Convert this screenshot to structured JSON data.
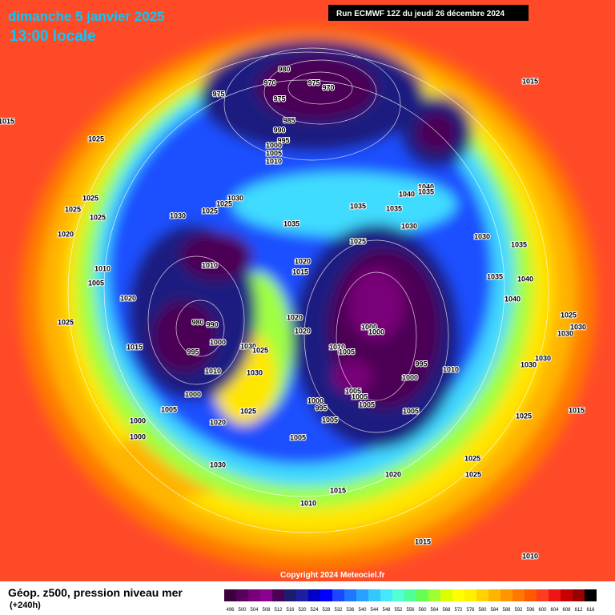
{
  "header": {
    "date": "dimanche 5 janvier 2025",
    "time": "13:00 locale",
    "run": "Run ECMWF 12Z du jeudi 26 décembre 2024"
  },
  "copyright": "Copyright 2024 Meteociel.fr",
  "footer": {
    "title": "Géop. z500, pression niveau mer",
    "lead": "(+240h)"
  },
  "isobar_labels": [
    980,
    970,
    975,
    970,
    975,
    975,
    985,
    990,
    995,
    1000,
    1005,
    1010,
    1015,
    1015,
    1025,
    1025,
    1025,
    1025,
    1020,
    1010,
    1005,
    1020,
    1025,
    1015,
    1010,
    980,
    990,
    995,
    1000,
    1010,
    1000,
    1005,
    1000,
    1000,
    1020,
    1025,
    1030,
    1030,
    1025,
    1030,
    1025,
    1025,
    1030,
    1035,
    1035,
    1035,
    1040,
    1040,
    1035,
    1030,
    1025,
    1030,
    1035,
    1035,
    1040,
    1040,
    1020,
    1015,
    1020,
    1020,
    1000,
    1000,
    1010,
    1005,
    995,
    1000,
    1010,
    1005,
    1005,
    1005,
    1000,
    995,
    1005,
    1005,
    1005,
    1030,
    1030,
    1025,
    1030,
    1030,
    1025,
    1015,
    1025,
    1025,
    1020,
    1015,
    1010,
    1030,
    1015,
    1010
  ],
  "colorbar": {
    "labels": [
      496,
      500,
      504,
      508,
      512,
      516,
      520,
      524,
      528,
      532,
      536,
      540,
      544,
      548,
      552,
      556,
      560,
      564,
      568,
      572,
      576,
      580,
      584,
      588,
      592,
      596,
      600,
      604,
      608,
      612,
      616
    ],
    "colors": [
      "#3c003c",
      "#58005a",
      "#780078",
      "#8c0090",
      "#4b0055",
      "#1c1c6e",
      "#1e1ea0",
      "#0000c8",
      "#0000ff",
      "#1e46ff",
      "#1e78ff",
      "#28a0ff",
      "#32c8ff",
      "#46e6ff",
      "#50ffd2",
      "#50ff96",
      "#64ff50",
      "#a0ff32",
      "#dcff00",
      "#ffff00",
      "#fff000",
      "#ffd200",
      "#ffb400",
      "#ff9600",
      "#ff7800",
      "#ff5a00",
      "#ff3c1e",
      "#f01414",
      "#c80000",
      "#960000",
      "#000000"
    ]
  }
}
